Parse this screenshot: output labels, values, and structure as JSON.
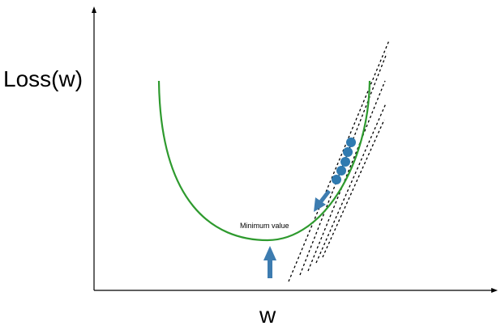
{
  "labels": {
    "y_axis": "Loss(w)",
    "x_axis": "w",
    "minimum": "Minimum value"
  },
  "colors": {
    "curve": "#2e9a2e",
    "points": "#2f7ab0",
    "arrows": "#3d7cb0",
    "tangents": "#000000",
    "axes": "#000000"
  }
}
